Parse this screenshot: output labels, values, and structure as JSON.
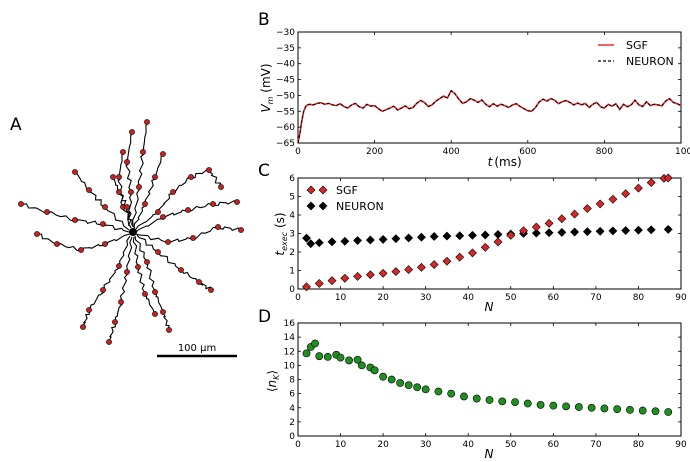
{
  "panel_labels": {
    "a": "A",
    "b": "B",
    "c": "C",
    "d": "D"
  },
  "morphology": {
    "scale_bar_label": "100 μm",
    "colors": {
      "dendrite": "#000000",
      "marker": "#cc1f1f"
    }
  },
  "chart_data": [
    {
      "panel": "B",
      "type": "line",
      "xlabel": "t (ms)",
      "ylabel": "V_m (mV)",
      "xlim": [
        0,
        1000
      ],
      "ylim": [
        -65,
        -30
      ],
      "xticks": [
        "0",
        "200",
        "400",
        "600",
        "800",
        "1000"
      ],
      "yticks": [
        "−30",
        "−35",
        "−40",
        "−45",
        "−50",
        "−55",
        "−60",
        "−65"
      ],
      "legend": "top-right",
      "series": [
        {
          "name": "SGF",
          "color": "#e8212b",
          "style": "solid",
          "x": [
            0,
            5,
            10,
            15,
            20,
            25,
            30,
            40,
            50,
            60,
            70,
            80,
            90,
            100,
            110,
            120,
            130,
            140,
            150,
            160,
            170,
            180,
            190,
            200,
            210,
            220,
            230,
            240,
            250,
            260,
            270,
            280,
            290,
            300,
            310,
            320,
            330,
            340,
            350,
            360,
            370,
            380,
            390,
            400,
            410,
            420,
            430,
            440,
            450,
            460,
            470,
            480,
            490,
            500,
            510,
            520,
            530,
            540,
            550,
            560,
            570,
            580,
            590,
            600,
            610,
            620,
            630,
            640,
            650,
            660,
            670,
            680,
            690,
            700,
            710,
            720,
            730,
            740,
            750,
            760,
            770,
            780,
            790,
            800,
            810,
            820,
            830,
            840,
            850,
            860,
            870,
            880,
            890,
            900,
            910,
            920,
            930,
            940,
            950,
            960,
            970,
            980,
            990,
            1000
          ],
          "y": [
            -65,
            -62,
            -58,
            -55,
            -53.5,
            -53,
            -52.8,
            -53,
            -52.5,
            -52.3,
            -52.8,
            -52.5,
            -53,
            -53.2,
            -52.6,
            -53.5,
            -54,
            -53,
            -52.5,
            -53.6,
            -54,
            -52.8,
            -53.4,
            -53.2,
            -54.2,
            -55,
            -54.5,
            -54,
            -53.4,
            -54.6,
            -54,
            -53.3,
            -54.2,
            -53.8,
            -52.5,
            -51.6,
            -52.2,
            -53.5,
            -53,
            -51.8,
            -51,
            -50.2,
            -50.8,
            -48.5,
            -49.5,
            -51.2,
            -52.5,
            -52,
            -51,
            -51.5,
            -52.2,
            -51.4,
            -52.8,
            -53.6,
            -52.6,
            -53.4,
            -52.8,
            -53.2,
            -53.8,
            -53,
            -52.6,
            -53.5,
            -54.2,
            -54.8,
            -55,
            -53.8,
            -52,
            -51.2,
            -51.8,
            -51,
            -51.5,
            -52.6,
            -52,
            -51.6,
            -52.2,
            -53,
            -52.4,
            -53,
            -52.5,
            -53.8,
            -52.8,
            -52.2,
            -53.6,
            -54,
            -52.8,
            -53.4,
            -52.6,
            -54.4,
            -52.8,
            -53.6,
            -53,
            -51.5,
            -53,
            -53.5,
            -52,
            -53.2,
            -52.8,
            -53,
            -53.3,
            -51.8,
            -51,
            -52.2,
            -52.6,
            -53.2
          ]
        },
        {
          "name": "NEURON",
          "color": "#000000",
          "style": "dashed",
          "same_as": "SGF"
        }
      ]
    },
    {
      "panel": "C",
      "type": "scatter",
      "xlabel": "N",
      "ylabel": "t_exec (s)",
      "xlim": [
        0,
        90
      ],
      "ylim": [
        0,
        6
      ],
      "xticks": [
        "0",
        "10",
        "20",
        "30",
        "40",
        "50",
        "60",
        "70",
        "80",
        "90"
      ],
      "yticks": [
        "0",
        "1",
        "2",
        "3",
        "4",
        "5",
        "6"
      ],
      "legend": "top-left",
      "series": [
        {
          "name": "SGF",
          "color": "#d62728",
          "x": [
            2,
            5,
            8,
            11,
            14,
            17,
            20,
            23,
            26,
            29,
            32,
            35,
            38,
            41,
            44,
            47,
            50,
            53,
            56,
            59,
            62,
            65,
            68,
            71,
            74,
            77,
            80,
            83,
            86,
            87
          ],
          "y": [
            0.12,
            0.3,
            0.45,
            0.58,
            0.68,
            0.77,
            0.85,
            0.94,
            1.05,
            1.17,
            1.32,
            1.5,
            1.72,
            1.95,
            2.25,
            2.55,
            2.9,
            3.15,
            3.35,
            3.55,
            3.8,
            4.05,
            4.35,
            4.6,
            4.85,
            5.15,
            5.45,
            5.75,
            5.98,
            6.0
          ]
        },
        {
          "name": "NEURON",
          "color": "#000000",
          "x": [
            2,
            3,
            5,
            8,
            11,
            14,
            17,
            20,
            23,
            26,
            29,
            32,
            35,
            38,
            41,
            44,
            47,
            50,
            53,
            56,
            59,
            62,
            65,
            68,
            71,
            74,
            77,
            80,
            83,
            87
          ],
          "y": [
            2.75,
            2.45,
            2.5,
            2.55,
            2.58,
            2.62,
            2.65,
            2.68,
            2.72,
            2.76,
            2.8,
            2.84,
            2.86,
            2.88,
            2.9,
            2.92,
            2.95,
            2.97,
            3.0,
            3.02,
            3.04,
            3.06,
            3.08,
            3.1,
            3.12,
            3.14,
            3.16,
            3.18,
            3.2,
            3.22
          ]
        }
      ]
    },
    {
      "panel": "D",
      "type": "scatter",
      "xlabel": "N",
      "ylabel": "⟨n_K⟩",
      "xlim": [
        0,
        90
      ],
      "ylim": [
        0,
        16
      ],
      "xticks": [
        "0",
        "10",
        "20",
        "30",
        "40",
        "50",
        "60",
        "70",
        "80",
        "90"
      ],
      "yticks": [
        "0",
        "2",
        "4",
        "6",
        "8",
        "10",
        "12",
        "14",
        "16"
      ],
      "series": [
        {
          "color": "#1f8f1f",
          "x": [
            2,
            3,
            4,
            5,
            7,
            9,
            10,
            12,
            14,
            15,
            17,
            18,
            20,
            22,
            24,
            26,
            28,
            30,
            33,
            36,
            39,
            42,
            45,
            48,
            51,
            54,
            57,
            60,
            63,
            66,
            69,
            72,
            75,
            78,
            81,
            84,
            87
          ],
          "y": [
            11.7,
            12.6,
            13.1,
            11.3,
            11.2,
            11.5,
            11.1,
            10.7,
            10.8,
            10.0,
            9.7,
            9.3,
            8.4,
            8.0,
            7.5,
            7.2,
            6.9,
            6.6,
            6.3,
            6.0,
            5.6,
            5.3,
            5.1,
            4.9,
            4.8,
            4.6,
            4.4,
            4.3,
            4.2,
            4.1,
            4.0,
            3.9,
            3.8,
            3.7,
            3.6,
            3.5,
            3.4
          ]
        }
      ]
    }
  ]
}
